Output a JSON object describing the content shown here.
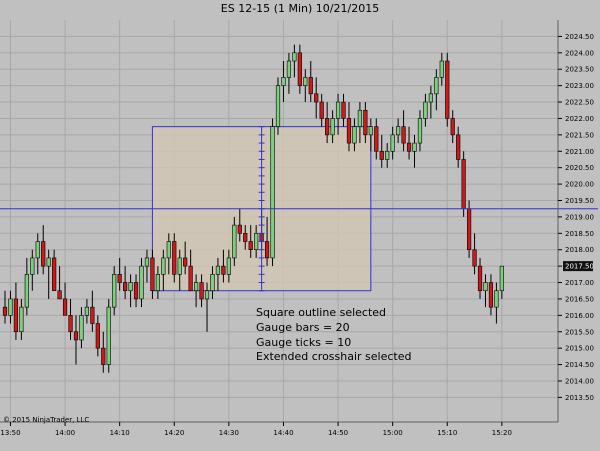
{
  "window": {
    "symbol": "ES 12-15",
    "interval": "(1 Min)",
    "date": "10/21/2015"
  },
  "copyright": "© 2015 NinjaTrader, LLC",
  "last_price_label": "2017.50",
  "annotations": [
    "Square outline selected",
    "Gauge bars = 20",
    "Gauge ticks = 10",
    "Extended crosshair selected"
  ],
  "colors": {
    "background": "#c0c0c0",
    "up_bar": "#7ccf7c",
    "down_bar": "#cc1a1a",
    "wick": "#000000",
    "crosshair": "#3333cc",
    "selection_fill": "#d2c5b4",
    "gridline": "#a8a8a8"
  },
  "chart_data": {
    "type": "candlestick",
    "title": "ES 12-15 (1 Min)  10/21/2015",
    "xlabel": "",
    "ylabel": "",
    "ylim": [
      2012.75,
      2025.0
    ],
    "x_range": [
      "13:49",
      "16:26"
    ],
    "x_ticks": [
      "13:50",
      "14:00",
      "14:10",
      "14:20",
      "14:30",
      "14:40",
      "14:50",
      "15:00",
      "15:10",
      "15:20"
    ],
    "y_ticks": [
      2013.5,
      2014.0,
      2014.5,
      2015.0,
      2015.5,
      2016.0,
      2016.5,
      2017.0,
      2017.5,
      2018.0,
      2018.5,
      2019.0,
      2019.5,
      2020.0,
      2020.5,
      2021.0,
      2021.5,
      2022.0,
      2022.5,
      2023.0,
      2023.5,
      2024.0,
      2024.5
    ],
    "y_tick_labels": [
      "2013.50",
      "2014.00",
      "2014.50",
      "2015.00",
      "2015.50",
      "2016.00",
      "2016.50",
      "2017.00",
      "2017.50",
      "2018.00",
      "2018.50",
      "2019.00",
      "2019.50",
      "2020.00",
      "2020.50",
      "2021.00",
      "2021.50",
      "2022.00",
      "2022.50",
      "2023.00",
      "2023.50",
      "2024.00",
      "2024.50"
    ],
    "grid": true,
    "last_price": 2017.5,
    "crosshair": {
      "time": "14:36",
      "price": 2019.25
    },
    "selection_box": {
      "start_time": "14:16",
      "end_time": "14:56",
      "high_price": 2021.75,
      "low_price": 2016.75
    },
    "bars": [
      [
        "13:49",
        2016.25,
        2016.75,
        2015.75,
        2016.0
      ],
      [
        "13:50",
        2016.0,
        2016.75,
        2015.75,
        2016.5
      ],
      [
        "13:51",
        2016.5,
        2017.0,
        2015.25,
        2015.5
      ],
      [
        "13:52",
        2015.5,
        2016.5,
        2015.25,
        2016.25
      ],
      [
        "13:53",
        2016.25,
        2017.75,
        2016.0,
        2017.25
      ],
      [
        "13:54",
        2017.25,
        2018.0,
        2016.75,
        2017.75
      ],
      [
        "13:55",
        2017.75,
        2018.5,
        2017.25,
        2018.25
      ],
      [
        "13:56",
        2018.25,
        2018.75,
        2017.25,
        2017.5
      ],
      [
        "13:57",
        2017.5,
        2018.0,
        2016.5,
        2017.75
      ],
      [
        "13:58",
        2017.75,
        2018.0,
        2016.75,
        2016.75
      ],
      [
        "13:59",
        2016.75,
        2017.5,
        2016.5,
        2016.5
      ],
      [
        "14:00",
        2016.5,
        2017.0,
        2016.0,
        2016.0
      ],
      [
        "14:01",
        2016.0,
        2016.5,
        2015.25,
        2015.5
      ],
      [
        "14:02",
        2015.5,
        2016.0,
        2014.5,
        2015.25
      ],
      [
        "14:03",
        2015.25,
        2016.25,
        2015.0,
        2016.0
      ],
      [
        "14:04",
        2016.0,
        2016.5,
        2015.75,
        2016.25
      ],
      [
        "14:05",
        2016.25,
        2016.75,
        2015.5,
        2015.75
      ],
      [
        "14:06",
        2015.75,
        2016.0,
        2014.75,
        2015.0
      ],
      [
        "14:07",
        2015.0,
        2015.5,
        2014.25,
        2014.5
      ],
      [
        "14:08",
        2014.5,
        2016.5,
        2014.25,
        2016.25
      ],
      [
        "14:09",
        2016.25,
        2017.5,
        2016.0,
        2017.25
      ],
      [
        "14:10",
        2017.25,
        2017.75,
        2016.75,
        2017.0
      ],
      [
        "14:11",
        2017.0,
        2017.5,
        2016.5,
        2016.75
      ],
      [
        "14:12",
        2016.75,
        2017.25,
        2016.25,
        2017.0
      ],
      [
        "14:13",
        2017.0,
        2017.25,
        2016.25,
        2016.5
      ],
      [
        "14:14",
        2016.5,
        2017.75,
        2016.25,
        2017.5
      ],
      [
        "14:15",
        2017.5,
        2018.0,
        2017.0,
        2017.75
      ],
      [
        "14:16",
        2017.75,
        2018.0,
        2016.5,
        2016.75
      ],
      [
        "14:17",
        2016.75,
        2017.5,
        2016.5,
        2017.25
      ],
      [
        "14:18",
        2017.25,
        2018.0,
        2016.75,
        2017.75
      ],
      [
        "14:19",
        2017.75,
        2018.5,
        2017.25,
        2018.25
      ],
      [
        "14:20",
        2018.25,
        2018.5,
        2017.0,
        2017.25
      ],
      [
        "14:21",
        2017.25,
        2018.0,
        2016.75,
        2017.75
      ],
      [
        "14:22",
        2017.75,
        2018.25,
        2017.25,
        2017.5
      ],
      [
        "14:23",
        2017.5,
        2018.0,
        2016.75,
        2016.75
      ],
      [
        "14:24",
        2016.75,
        2017.25,
        2016.25,
        2017.0
      ],
      [
        "14:25",
        2017.0,
        2017.25,
        2016.25,
        2016.5
      ],
      [
        "14:26",
        2016.5,
        2017.0,
        2015.5,
        2016.75
      ],
      [
        "14:27",
        2016.75,
        2017.5,
        2016.5,
        2017.25
      ],
      [
        "14:28",
        2017.25,
        2017.75,
        2016.75,
        2017.5
      ],
      [
        "14:29",
        2017.5,
        2018.0,
        2017.0,
        2017.25
      ],
      [
        "14:30",
        2017.25,
        2018.0,
        2017.0,
        2017.75
      ],
      [
        "14:31",
        2017.75,
        2019.0,
        2017.5,
        2018.75
      ],
      [
        "14:32",
        2018.75,
        2019.25,
        2018.25,
        2018.5
      ],
      [
        "14:33",
        2018.5,
        2018.75,
        2018.0,
        2018.25
      ],
      [
        "14:34",
        2018.25,
        2018.75,
        2017.75,
        2018.0
      ],
      [
        "14:35",
        2018.0,
        2018.75,
        2017.75,
        2018.5
      ],
      [
        "14:36",
        2018.5,
        2019.25,
        2018.0,
        2018.25
      ],
      [
        "14:37",
        2018.25,
        2019.0,
        2017.5,
        2017.75
      ],
      [
        "14:38",
        2017.75,
        2022.0,
        2017.5,
        2021.75
      ],
      [
        "14:39",
        2021.75,
        2023.25,
        2021.5,
        2023.0
      ],
      [
        "14:40",
        2023.0,
        2023.75,
        2022.5,
        2023.25
      ],
      [
        "14:41",
        2023.25,
        2024.0,
        2022.75,
        2023.75
      ],
      [
        "14:42",
        2023.75,
        2024.25,
        2023.25,
        2024.0
      ],
      [
        "14:43",
        2024.0,
        2024.25,
        2022.75,
        2023.0
      ],
      [
        "14:44",
        2023.0,
        2023.5,
        2022.5,
        2023.25
      ],
      [
        "14:45",
        2023.25,
        2023.75,
        2022.5,
        2022.75
      ],
      [
        "14:46",
        2022.75,
        2023.25,
        2022.0,
        2022.5
      ],
      [
        "14:47",
        2022.5,
        2022.75,
        2021.75,
        2022.0
      ],
      [
        "14:48",
        2022.0,
        2022.5,
        2021.25,
        2021.5
      ],
      [
        "14:49",
        2021.5,
        2022.25,
        2021.25,
        2022.0
      ],
      [
        "14:50",
        2022.0,
        2022.75,
        2021.5,
        2022.5
      ],
      [
        "14:51",
        2022.5,
        2022.75,
        2021.75,
        2022.0
      ],
      [
        "14:52",
        2022.0,
        2022.5,
        2021.0,
        2021.25
      ],
      [
        "14:53",
        2021.25,
        2022.0,
        2021.0,
        2021.75
      ],
      [
        "14:54",
        2021.75,
        2022.5,
        2021.25,
        2022.25
      ],
      [
        "14:55",
        2022.25,
        2022.5,
        2021.25,
        2021.5
      ],
      [
        "14:56",
        2021.5,
        2022.0,
        2021.0,
        2021.75
      ],
      [
        "14:57",
        2021.75,
        2022.0,
        2020.75,
        2021.0
      ],
      [
        "14:58",
        2021.0,
        2021.5,
        2020.5,
        2020.75
      ],
      [
        "14:59",
        2020.75,
        2021.25,
        2020.5,
        2021.0
      ],
      [
        "15:00",
        2021.0,
        2021.75,
        2020.75,
        2021.5
      ],
      [
        "15:01",
        2021.5,
        2022.0,
        2021.25,
        2021.75
      ],
      [
        "15:02",
        2021.75,
        2022.25,
        2021.0,
        2021.25
      ],
      [
        "15:03",
        2021.25,
        2021.75,
        2020.75,
        2021.0
      ],
      [
        "15:04",
        2021.0,
        2021.5,
        2020.5,
        2021.25
      ],
      [
        "15:05",
        2021.25,
        2022.25,
        2021.0,
        2022.0
      ],
      [
        "15:06",
        2022.0,
        2022.75,
        2021.75,
        2022.5
      ],
      [
        "15:07",
        2022.5,
        2023.0,
        2022.0,
        2022.75
      ],
      [
        "15:08",
        2022.75,
        2023.5,
        2022.25,
        2023.25
      ],
      [
        "15:09",
        2023.25,
        2024.0,
        2023.0,
        2023.75
      ],
      [
        "15:10",
        2023.75,
        2024.0,
        2021.75,
        2022.0
      ],
      [
        "15:11",
        2022.0,
        2022.25,
        2021.25,
        2021.5
      ],
      [
        "15:12",
        2021.5,
        2021.75,
        2020.5,
        2020.75
      ],
      [
        "15:13",
        2020.75,
        2021.0,
        2019.0,
        2019.25
      ],
      [
        "15:14",
        2019.25,
        2019.5,
        2017.75,
        2018.0
      ],
      [
        "15:15",
        2018.0,
        2018.5,
        2017.25,
        2017.5
      ],
      [
        "15:16",
        2017.5,
        2017.75,
        2016.5,
        2016.75
      ],
      [
        "15:17",
        2016.75,
        2017.25,
        2016.25,
        2017.0
      ],
      [
        "15:18",
        2017.0,
        2017.25,
        2016.0,
        2016.25
      ],
      [
        "15:19",
        2016.25,
        2017.0,
        2015.75,
        2016.75
      ],
      [
        "15:20",
        2016.75,
        2017.5,
        2016.5,
        2017.5
      ]
    ]
  }
}
